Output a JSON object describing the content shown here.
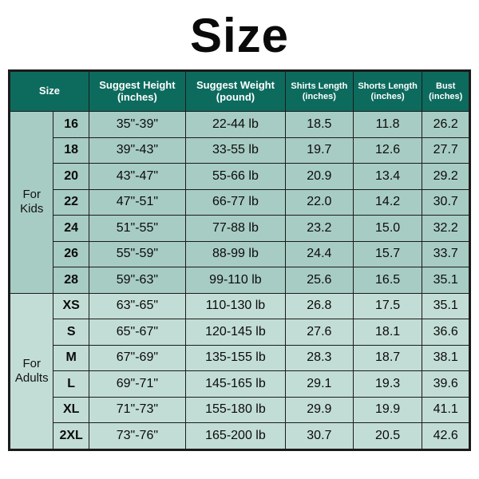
{
  "title": "Size",
  "colors": {
    "header_bg": "#0d6b5e",
    "header_text": "#ffffff",
    "kids_bg": "#a7ccc3",
    "adults_bg": "#c2ddd5",
    "border": "#1b1b1b",
    "page_bg": "#ffffff",
    "title_color": "#0a0a0a",
    "cell_text": "#0b0b0b"
  },
  "typography": {
    "title_fontsize": 60,
    "title_weight": 900,
    "header_fontsize": 13,
    "header_small_fontsize": 11,
    "cell_fontsize": 16,
    "group_fontsize": 15,
    "font_family": "Arial"
  },
  "table": {
    "columns": [
      {
        "key": "group",
        "label": "",
        "width": 54
      },
      {
        "key": "size",
        "label": "Size",
        "width": 44
      },
      {
        "key": "height",
        "label": "Suggest Height (inches)",
        "width": 120
      },
      {
        "key": "weight",
        "label": "Suggest Weight (pound)",
        "width": 124
      },
      {
        "key": "shirts",
        "label": "Shirts Length (inches)",
        "width": 84,
        "small": true
      },
      {
        "key": "shorts",
        "label": "Shorts Length (inches)",
        "width": 86,
        "small": true
      },
      {
        "key": "bust",
        "label": "Bust (inches)",
        "width": 58,
        "small": true
      }
    ],
    "groups": [
      {
        "label": "For Kids",
        "label_line1": "For",
        "label_line2": "Kids",
        "style": "kids",
        "rows": [
          {
            "size": "16",
            "height": "35\"-39\"",
            "weight": "22-44 lb",
            "shirts": "18.5",
            "shorts": "11.8",
            "bust": "26.2"
          },
          {
            "size": "18",
            "height": "39\"-43\"",
            "weight": "33-55 lb",
            "shirts": "19.7",
            "shorts": "12.6",
            "bust": "27.7"
          },
          {
            "size": "20",
            "height": "43\"-47\"",
            "weight": "55-66 lb",
            "shirts": "20.9",
            "shorts": "13.4",
            "bust": "29.2"
          },
          {
            "size": "22",
            "height": "47\"-51\"",
            "weight": "66-77 lb",
            "shirts": "22.0",
            "shorts": "14.2",
            "bust": "30.7"
          },
          {
            "size": "24",
            "height": "51\"-55\"",
            "weight": "77-88 lb",
            "shirts": "23.2",
            "shorts": "15.0",
            "bust": "32.2"
          },
          {
            "size": "26",
            "height": "55\"-59\"",
            "weight": "88-99 lb",
            "shirts": "24.4",
            "shorts": "15.7",
            "bust": "33.7"
          },
          {
            "size": "28",
            "height": "59\"-63\"",
            "weight": "99-110 lb",
            "shirts": "25.6",
            "shorts": "16.5",
            "bust": "35.1"
          }
        ]
      },
      {
        "label": "For Adults",
        "label_line1": "For",
        "label_line2": "Adults",
        "style": "adults",
        "rows": [
          {
            "size": "XS",
            "height": "63\"-65\"",
            "weight": "110-130 lb",
            "shirts": "26.8",
            "shorts": "17.5",
            "bust": "35.1"
          },
          {
            "size": "S",
            "height": "65\"-67\"",
            "weight": "120-145 lb",
            "shirts": "27.6",
            "shorts": "18.1",
            "bust": "36.6"
          },
          {
            "size": "M",
            "height": "67\"-69\"",
            "weight": "135-155 lb",
            "shirts": "28.3",
            "shorts": "18.7",
            "bust": "38.1"
          },
          {
            "size": "L",
            "height": "69\"-71\"",
            "weight": "145-165 lb",
            "shirts": "29.1",
            "shorts": "19.3",
            "bust": "39.6"
          },
          {
            "size": "XL",
            "height": "71\"-73\"",
            "weight": "155-180 lb",
            "shirts": "29.9",
            "shorts": "19.9",
            "bust": "41.1"
          },
          {
            "size": "2XL",
            "height": "73\"-76\"",
            "weight": "165-200 lb",
            "shirts": "30.7",
            "shorts": "20.5",
            "bust": "42.6"
          }
        ]
      }
    ]
  }
}
